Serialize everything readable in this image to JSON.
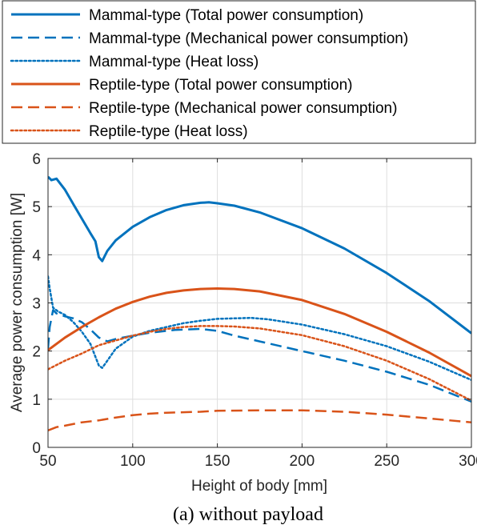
{
  "caption": "(a) without payload",
  "chart_data": {
    "type": "line",
    "title": "",
    "xlabel": "Height of body [mm]",
    "ylabel": "Average power consumption [W]",
    "xlim": [
      50,
      300
    ],
    "ylim": [
      0,
      6
    ],
    "xticks": [
      50,
      100,
      150,
      200,
      250,
      300
    ],
    "yticks": [
      0,
      1,
      2,
      3,
      4,
      5,
      6
    ],
    "grid": true,
    "legend_position": "top, outside plot area",
    "series": [
      {
        "name": "Mammal-type (Total power consumption)",
        "color": "#0072BD",
        "dash": "solid",
        "x": [
          50,
          52,
          55,
          60,
          65,
          70,
          75,
          78,
          80,
          82,
          85,
          90,
          100,
          110,
          120,
          130,
          140,
          145,
          150,
          160,
          175,
          200,
          225,
          250,
          275,
          300
        ],
        "y": [
          5.62,
          5.55,
          5.58,
          5.35,
          5.05,
          4.75,
          4.45,
          4.28,
          3.95,
          3.87,
          4.08,
          4.3,
          4.58,
          4.78,
          4.93,
          5.03,
          5.08,
          5.09,
          5.07,
          5.02,
          4.88,
          4.55,
          4.13,
          3.62,
          3.04,
          2.37
        ]
      },
      {
        "name": "Mammal-type (Mechanical power consumption)",
        "color": "#0072BD",
        "dash": "dashed",
        "x": [
          50,
          51,
          53,
          55,
          60,
          65,
          70,
          75,
          80,
          85,
          90,
          100,
          110,
          125,
          140,
          150,
          160,
          175,
          200,
          225,
          250,
          275,
          300
        ],
        "y": [
          2.05,
          2.5,
          2.85,
          2.78,
          2.72,
          2.68,
          2.6,
          2.45,
          2.28,
          2.2,
          2.25,
          2.32,
          2.38,
          2.44,
          2.46,
          2.42,
          2.32,
          2.2,
          2.0,
          1.8,
          1.57,
          1.3,
          0.95
        ]
      },
      {
        "name": "Mammal-type (Heat loss)",
        "color": "#0072BD",
        "dash": "dotted",
        "x": [
          50,
          51,
          53,
          56,
          60,
          65,
          70,
          75,
          80,
          82,
          85,
          90,
          100,
          110,
          120,
          130,
          140,
          150,
          160,
          170,
          180,
          200,
          225,
          250,
          275,
          300
        ],
        "y": [
          3.55,
          3.3,
          2.9,
          2.82,
          2.75,
          2.6,
          2.4,
          2.15,
          1.7,
          1.65,
          1.8,
          2.05,
          2.3,
          2.42,
          2.5,
          2.58,
          2.63,
          2.67,
          2.68,
          2.69,
          2.66,
          2.55,
          2.35,
          2.1,
          1.78,
          1.4
        ]
      },
      {
        "name": "Reptile-type (Total power consumption)",
        "color": "#D95319",
        "dash": "solid",
        "x": [
          50,
          60,
          70,
          80,
          90,
          100,
          110,
          120,
          130,
          140,
          150,
          160,
          175,
          200,
          225,
          250,
          275,
          300
        ],
        "y": [
          2.02,
          2.28,
          2.5,
          2.7,
          2.88,
          3.02,
          3.13,
          3.21,
          3.26,
          3.29,
          3.3,
          3.29,
          3.24,
          3.06,
          2.77,
          2.4,
          1.97,
          1.48
        ]
      },
      {
        "name": "Reptile-type (Mechanical power consumption)",
        "color": "#D95319",
        "dash": "dashed",
        "x": [
          50,
          55,
          60,
          70,
          80,
          90,
          100,
          110,
          120,
          130,
          140,
          150,
          175,
          200,
          225,
          250,
          275,
          300
        ],
        "y": [
          0.35,
          0.42,
          0.45,
          0.52,
          0.56,
          0.62,
          0.67,
          0.7,
          0.72,
          0.73,
          0.74,
          0.76,
          0.77,
          0.77,
          0.74,
          0.68,
          0.6,
          0.52
        ]
      },
      {
        "name": "Reptile-type (Heat loss)",
        "color": "#D95319",
        "dash": "dotted",
        "x": [
          50,
          60,
          70,
          80,
          90,
          100,
          110,
          120,
          130,
          140,
          150,
          160,
          175,
          200,
          225,
          250,
          275,
          300
        ],
        "y": [
          1.62,
          1.8,
          1.95,
          2.12,
          2.22,
          2.32,
          2.4,
          2.46,
          2.5,
          2.52,
          2.52,
          2.51,
          2.47,
          2.33,
          2.1,
          1.8,
          1.42,
          0.97
        ]
      }
    ]
  }
}
